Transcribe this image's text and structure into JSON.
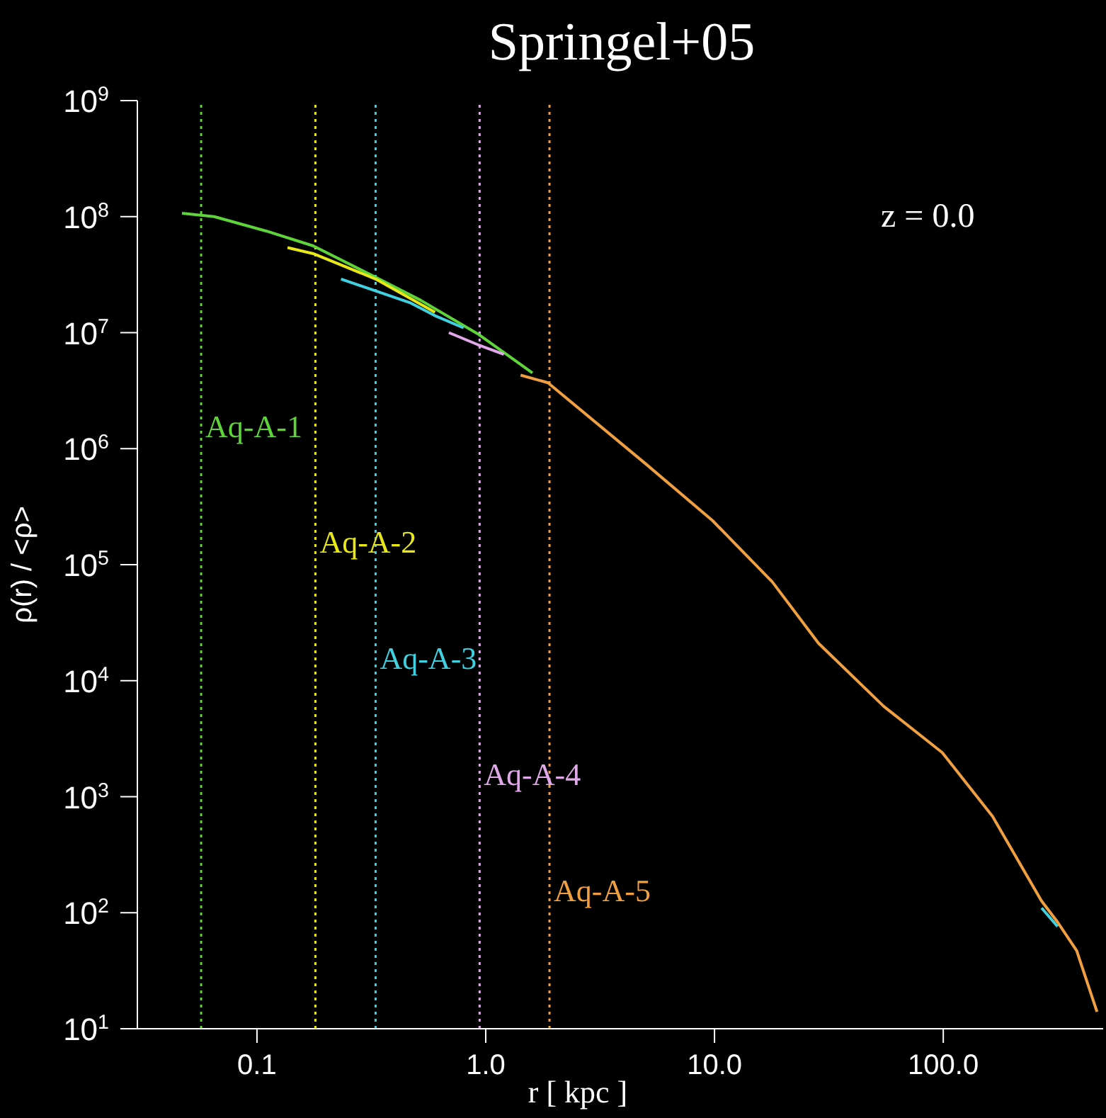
{
  "chart_data": {
    "type": "line",
    "title": "Springel+05",
    "xlabel": "r [ kpc ]",
    "ylabel": "ρ(r) / <ρ>",
    "annotations": [
      "z = 0.0"
    ],
    "log": "xy",
    "xlim": [
      0.03,
      500
    ],
    "ylim": [
      10,
      1000000000
    ],
    "xticks": [
      0.1,
      {
        "value": 1,
        "label": "1.0"
      },
      {
        "value": 10,
        "label": "10.0"
      },
      {
        "value": 100,
        "label": "100.0"
      }
    ],
    "yticks": [
      {
        "value": 10,
        "label": "10$^{1}$"
      },
      {
        "value": 100,
        "label": "10$^{2}$"
      },
      {
        "value": 1000,
        "label": "10$^{3}$"
      },
      {
        "value": 10000,
        "label": "10$^{4}$"
      },
      {
        "value": 100000,
        "label": "10$^{5}$"
      },
      {
        "value": 1000000,
        "label": "10$^{6}$"
      },
      {
        "value": 10000000,
        "label": "10$^{7}$"
      },
      {
        "value": 100000000,
        "label": "10$^{8}$"
      },
      {
        "value": 1000000000,
        "label": "10$^{9}$"
      }
    ],
    "series": [
      {
        "name": "Aq-A-1",
        "color": "#5ed43a",
        "x": [
          0.047,
          0.065,
          0.11,
          0.176,
          0.33,
          0.52,
          0.92,
          1.6
        ],
        "values": [
          107000000,
          100000000,
          75000000,
          56000000,
          30000000,
          19000000,
          9800000,
          4500000
        ]
      },
      {
        "name": "Aq-A-2",
        "color": "#e8e818",
        "x": [
          0.136,
          0.176,
          0.33,
          0.6
        ],
        "values": [
          54000000,
          48000000,
          29000000,
          15000000
        ]
      },
      {
        "name": "Aq-A-3",
        "color": "#40d0e0",
        "x": [
          0.233,
          0.47,
          0.6,
          0.8,
          164,
          269,
          316
        ],
        "values": [
          29000000,
          18000000,
          14000000,
          11000000,
          null,
          110,
          76
        ]
      },
      {
        "name": "Aq-A-4",
        "color": "#e0a8e8",
        "x": [
          0.69,
          0.92,
          1.2
        ],
        "values": [
          10000000,
          7900000,
          6500000
        ]
      },
      {
        "name": "Aq-A-5",
        "color": "#f0a040",
        "x": [
          1.42,
          1.87,
          5,
          9.8,
          17.9,
          28.5,
          55,
          99,
          164,
          269,
          316,
          383,
          470
        ],
        "values": [
          4300000,
          3700000,
          740000,
          240000,
          71000,
          21000,
          6000,
          2400,
          680,
          126,
          83,
          47,
          14
        ]
      }
    ],
    "ref_lines": [
      {
        "axis": "x",
        "value": 0.057,
        "color": "#5ed43a",
        "line_style": "dotted"
      },
      {
        "axis": "x",
        "value": 0.18,
        "color": "#e8e818",
        "line_style": "dotted"
      },
      {
        "axis": "x",
        "value": 0.33,
        "color": "#40d0e0",
        "line_style": "dotted"
      },
      {
        "axis": "x",
        "value": 0.94,
        "color": "#e0a8e8",
        "line_style": "dotted"
      },
      {
        "axis": "x",
        "value": 1.9,
        "color": "#f0a040",
        "line_style": "dotted"
      }
    ]
  }
}
